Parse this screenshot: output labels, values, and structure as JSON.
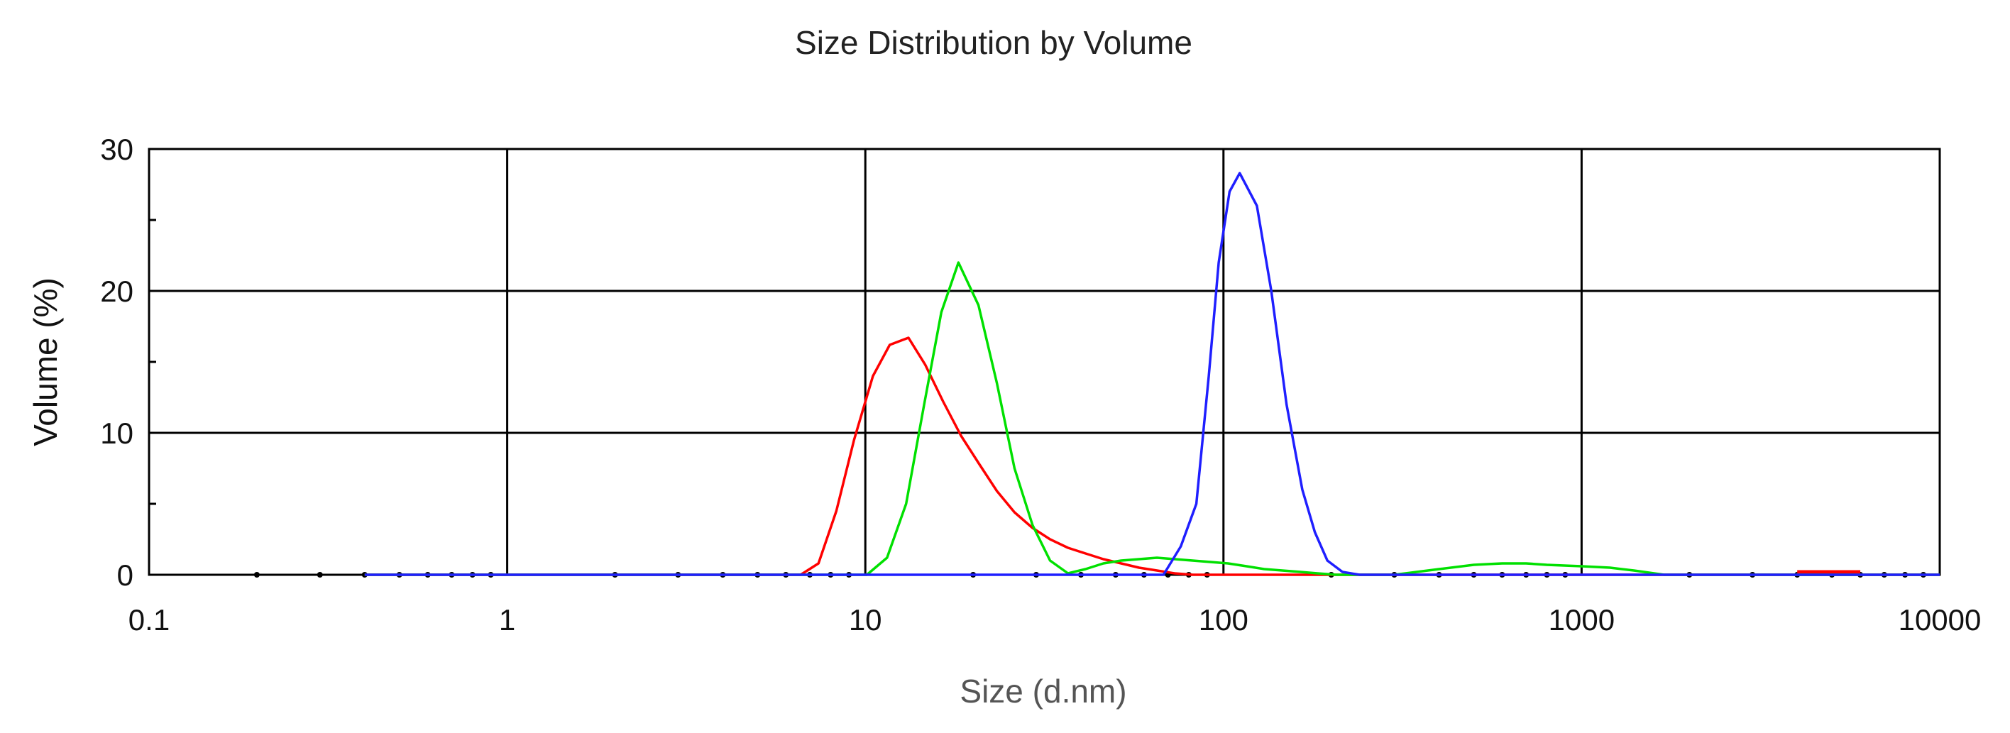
{
  "chart_data": {
    "type": "line",
    "title": "Size Distribution by Volume",
    "xlabel": "Size (d.nm)",
    "ylabel": "Volume (%)",
    "x_scale": "log",
    "xlim": [
      0.1,
      10000
    ],
    "ylim": [
      0,
      30
    ],
    "x_ticks": [
      {
        "value": 0.1,
        "label": "0.1"
      },
      {
        "value": 1,
        "label": "1"
      },
      {
        "value": 10,
        "label": "10"
      },
      {
        "value": 100,
        "label": "100"
      },
      {
        "value": 1000,
        "label": "1000"
      },
      {
        "value": 10000,
        "label": "10000"
      }
    ],
    "y_ticks": [
      {
        "value": 0,
        "label": "0"
      },
      {
        "value": 10,
        "label": "10"
      },
      {
        "value": 20,
        "label": "20"
      },
      {
        "value": 30,
        "label": "30"
      }
    ],
    "grid": true,
    "series": [
      {
        "color": "#ff0000",
        "points": [
          [
            0.4,
            0
          ],
          [
            6.6,
            0
          ],
          [
            7.4,
            0.8
          ],
          [
            8.3,
            4.5
          ],
          [
            9.3,
            9.5
          ],
          [
            10.5,
            14
          ],
          [
            11.7,
            16.2
          ],
          [
            13.2,
            16.7
          ],
          [
            14.7,
            14.8
          ],
          [
            16.5,
            12.2
          ],
          [
            18.5,
            9.8
          ],
          [
            20.8,
            7.8
          ],
          [
            23.3,
            5.9
          ],
          [
            26.1,
            4.4
          ],
          [
            29.3,
            3.3
          ],
          [
            32.8,
            2.5
          ],
          [
            36.8,
            1.9
          ],
          [
            41.2,
            1.5
          ],
          [
            46.2,
            1.1
          ],
          [
            51.8,
            0.8
          ],
          [
            58.1,
            0.5
          ],
          [
            65.2,
            0.3
          ],
          [
            73.1,
            0.1
          ],
          [
            82,
            0
          ],
          [
            10000,
            0
          ]
        ],
        "extra_segments": [
          [
            [
              4000,
              0.2
            ],
            [
              6000,
              0.2
            ]
          ]
        ]
      },
      {
        "color": "#00e000",
        "points": [
          [
            0.4,
            0
          ],
          [
            10.1,
            0
          ],
          [
            11.5,
            1.2
          ],
          [
            13,
            5
          ],
          [
            14.6,
            12
          ],
          [
            16.3,
            18.5
          ],
          [
            18.2,
            22
          ],
          [
            20.7,
            19
          ],
          [
            23.3,
            13.5
          ],
          [
            26.1,
            7.5
          ],
          [
            29.3,
            3.5
          ],
          [
            32.8,
            1
          ],
          [
            36.8,
            0.1
          ],
          [
            41.2,
            0.4
          ],
          [
            46.2,
            0.8
          ],
          [
            51.8,
            1
          ],
          [
            58.1,
            1.1
          ],
          [
            65.2,
            1.2
          ],
          [
            73.1,
            1.1
          ],
          [
            82,
            1
          ],
          [
            92,
            0.9
          ],
          [
            103,
            0.8
          ],
          [
            116,
            0.6
          ],
          [
            130,
            0.4
          ],
          [
            146,
            0.3
          ],
          [
            164,
            0.2
          ],
          [
            183,
            0.1
          ],
          [
            206,
            0
          ],
          [
            300,
            0
          ],
          [
            400,
            0.4
          ],
          [
            500,
            0.7
          ],
          [
            600,
            0.8
          ],
          [
            700,
            0.8
          ],
          [
            800,
            0.7
          ],
          [
            1000,
            0.6
          ],
          [
            1200,
            0.5
          ],
          [
            1400,
            0.3
          ],
          [
            1700,
            0
          ],
          [
            10000,
            0
          ]
        ]
      },
      {
        "color": "#1f1fff",
        "points": [
          [
            0.4,
            0
          ],
          [
            68,
            0
          ],
          [
            76,
            2
          ],
          [
            84,
            5
          ],
          [
            91,
            14
          ],
          [
            97,
            22
          ],
          [
            104,
            27
          ],
          [
            111,
            28.3
          ],
          [
            124,
            26
          ],
          [
            136,
            20
          ],
          [
            150,
            12
          ],
          [
            166,
            6
          ],
          [
            180,
            3
          ],
          [
            195,
            1
          ],
          [
            215,
            0.2
          ],
          [
            240,
            0
          ],
          [
            10000,
            0
          ]
        ]
      }
    ]
  }
}
